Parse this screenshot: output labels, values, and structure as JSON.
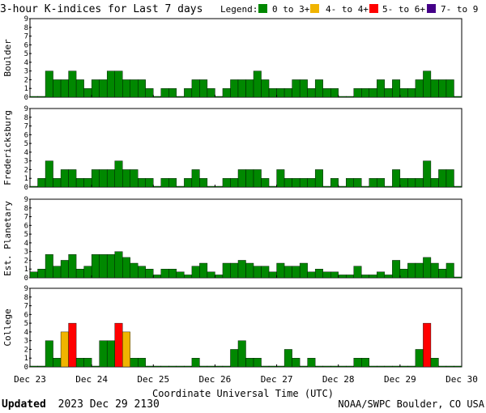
{
  "title": "3-hour K-indices for Last 7 days",
  "legend": {
    "label": "Legend:",
    "items": [
      {
        "label": "0 to 3+",
        "color": "#008800"
      },
      {
        "label": "4- to 4+",
        "color": "#f0b400"
      },
      {
        "label": "5- to 6+",
        "color": "#ff0000"
      },
      {
        "label": "7- to 9",
        "color": "#440088"
      }
    ]
  },
  "footer": {
    "updated_label": "Updated",
    "updated_value": "2023 Dec 29 2130",
    "source": "NOAA/SWPC Boulder, CO USA"
  },
  "chart_data": {
    "type": "bar",
    "xlabel": "Coordinate Universal Time (UTC)",
    "x_ticks": [
      "Dec 23",
      "Dec 24",
      "Dec 25",
      "Dec 26",
      "Dec 27",
      "Dec 28",
      "Dec 29",
      "Dec 30"
    ],
    "y_ticks": [
      "0",
      "1",
      "2",
      "3",
      "4",
      "5",
      "6",
      "7",
      "8",
      "9"
    ],
    "ylim": [
      0,
      9
    ],
    "bins_per_day": 8,
    "color_thresholds": [
      {
        "max": 4,
        "color": "#008800"
      },
      {
        "max": 5,
        "color": "#f0b400"
      },
      {
        "max": 7,
        "color": "#ff0000"
      },
      {
        "max": 10,
        "color": "#440088"
      }
    ],
    "series": [
      {
        "name": "Boulder",
        "values": [
          0,
          0,
          3,
          2,
          2,
          3,
          2,
          1,
          2,
          2,
          3,
          3,
          2,
          2,
          2,
          1,
          0,
          1,
          1,
          0,
          1,
          2,
          2,
          1,
          0,
          1,
          2,
          2,
          2,
          3,
          2,
          1,
          1,
          1,
          2,
          2,
          1,
          2,
          1,
          1,
          0,
          0,
          1,
          1,
          1,
          2,
          1,
          2,
          1,
          1,
          2,
          3,
          2,
          2,
          2,
          0
        ]
      },
      {
        "name": "Fredericksburg",
        "values": [
          0,
          1,
          3,
          1,
          2,
          2,
          1,
          1,
          2,
          2,
          2,
          3,
          2,
          2,
          1,
          1,
          0,
          1,
          1,
          0,
          1,
          2,
          1,
          0,
          0,
          1,
          1,
          2,
          2,
          2,
          1,
          0,
          2,
          1,
          1,
          1,
          1,
          2,
          0,
          1,
          0,
          1,
          1,
          0,
          1,
          1,
          0,
          2,
          1,
          1,
          1,
          3,
          1,
          2,
          2,
          0
        ]
      },
      {
        "name": "Est. Planetary",
        "values": [
          0.67,
          1,
          2.67,
          1.33,
          2,
          2.67,
          1,
          1.33,
          2.67,
          2.67,
          2.67,
          3,
          2.33,
          1.67,
          1.33,
          1,
          0.33,
          1,
          1,
          0.67,
          0.33,
          1.33,
          1.67,
          0.67,
          0.33,
          1.67,
          1.67,
          2,
          1.67,
          1.33,
          1.33,
          0.67,
          1.67,
          1.33,
          1.33,
          1.67,
          0.67,
          1,
          0.67,
          0.67,
          0.33,
          0.33,
          1.33,
          0.33,
          0.33,
          0.67,
          0.33,
          2,
          1,
          1.67,
          1.67,
          2.33,
          1.67,
          1,
          1.67,
          0
        ]
      },
      {
        "name": "College",
        "values": [
          0,
          0,
          3,
          1,
          4,
          5,
          1,
          1,
          0,
          3,
          3,
          5,
          4,
          1,
          1,
          0,
          0,
          0,
          0,
          0,
          0,
          1,
          0,
          0,
          0,
          0,
          2,
          3,
          1,
          1,
          0,
          0,
          0,
          2,
          1,
          0,
          1,
          0,
          0,
          0,
          0,
          0,
          1,
          1,
          0,
          0,
          0,
          0,
          0,
          0,
          2,
          5,
          1,
          0,
          0,
          0
        ]
      }
    ]
  }
}
